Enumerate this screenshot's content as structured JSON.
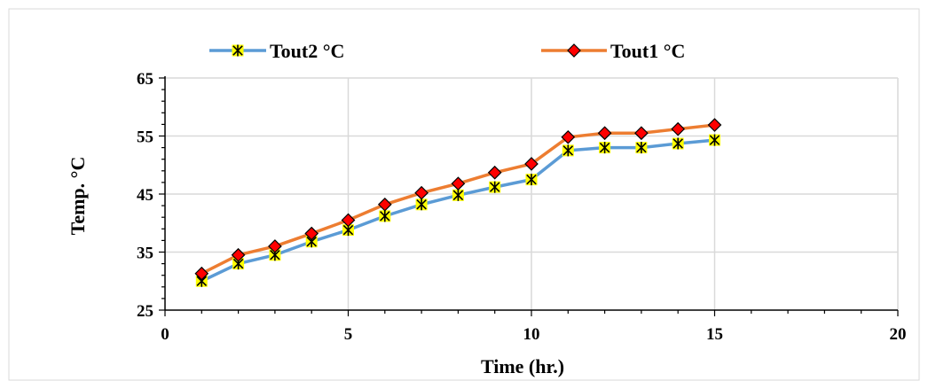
{
  "colors": {
    "tout2_line": "#5B9BD5",
    "tout2_marker_fill": "#FFFF00",
    "tout1_line": "#ED7D31",
    "tout1_marker_fill": "#FF0000",
    "grid": "#D9D9D9",
    "axis": "#000000"
  },
  "chart_data": {
    "type": "line",
    "title": "",
    "xlabel": "Time (hr.)",
    "ylabel": "Temp. °C",
    "xlim": [
      0,
      20
    ],
    "ylim": [
      25,
      65
    ],
    "xticks": [
      0,
      5,
      10,
      15,
      20
    ],
    "yticks": [
      25,
      35,
      45,
      55,
      65
    ],
    "grid": true,
    "legend_position": "top",
    "x": [
      1,
      2,
      3,
      4,
      5,
      6,
      7,
      8,
      9,
      10,
      11,
      12,
      13,
      14,
      15
    ],
    "series": [
      {
        "name": "Tout2 °C",
        "marker": "star-x",
        "values": [
          30.0,
          33.0,
          34.5,
          36.8,
          38.8,
          41.2,
          43.2,
          44.8,
          46.2,
          47.5,
          52.5,
          53.0,
          53.0,
          53.7,
          54.3
        ]
      },
      {
        "name": "Tout1 °C",
        "marker": "diamond",
        "values": [
          31.3,
          34.5,
          36.0,
          38.2,
          40.5,
          43.2,
          45.2,
          46.8,
          48.7,
          50.2,
          54.8,
          55.5,
          55.5,
          56.2,
          56.9
        ]
      }
    ]
  }
}
